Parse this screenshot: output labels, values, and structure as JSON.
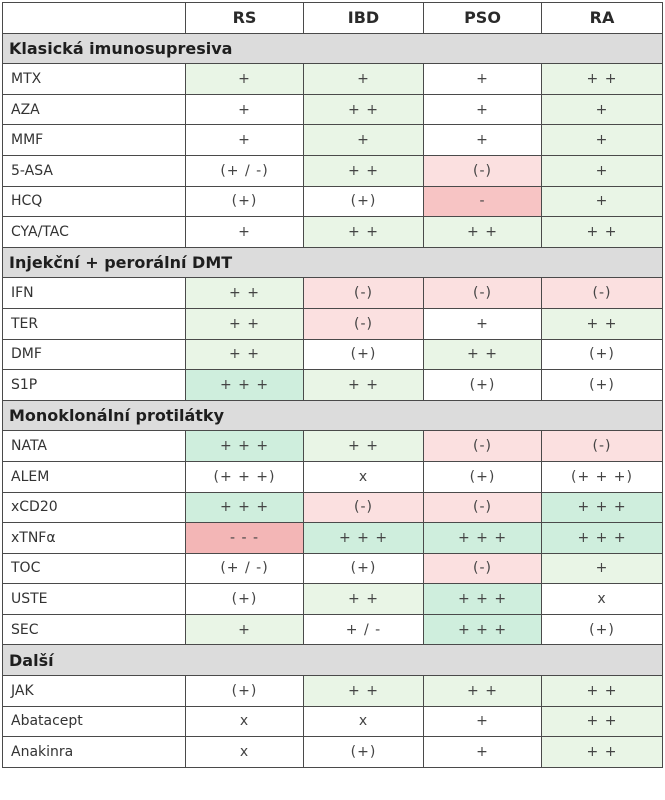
{
  "table": {
    "headers": [
      "RS",
      "IBD",
      "PSO",
      "RA"
    ],
    "sections": [
      {
        "title": "Klasická imunosupresiva",
        "rows": [
          {
            "name": "MTX",
            "values": [
              "+",
              "+",
              "+",
              "+ +"
            ],
            "tones": [
              "g1",
              "g1",
              "w",
              "g1"
            ]
          },
          {
            "name": "AZA",
            "values": [
              "+",
              "+ +",
              "+",
              "+"
            ],
            "tones": [
              "w",
              "g1",
              "w",
              "g1"
            ]
          },
          {
            "name": "MMF",
            "values": [
              "+",
              "+",
              "+",
              "+"
            ],
            "tones": [
              "w",
              "g1",
              "w",
              "g1"
            ]
          },
          {
            "name": "5-ASA",
            "values": [
              "(+ / -)",
              "+ +",
              "(-)",
              "+"
            ],
            "tones": [
              "w",
              "g1",
              "p1",
              "g1"
            ]
          },
          {
            "name": "HCQ",
            "values": [
              "(+)",
              "(+)",
              "-",
              "+"
            ],
            "tones": [
              "w",
              "w",
              "p2",
              "g1"
            ]
          },
          {
            "name": "CYA/TAC",
            "values": [
              "+",
              "+ +",
              "+ +",
              "+ +"
            ],
            "tones": [
              "w",
              "g1",
              "g1",
              "g1"
            ]
          }
        ]
      },
      {
        "title": "Injekční + perorální DMT",
        "rows": [
          {
            "name": "IFN",
            "values": [
              "+ +",
              "(-)",
              "(-)",
              "(-)"
            ],
            "tones": [
              "g1",
              "p1",
              "p1",
              "p1"
            ]
          },
          {
            "name": "TER",
            "values": [
              "+ +",
              "(-)",
              "+",
              "+ +"
            ],
            "tones": [
              "g1",
              "p1",
              "w",
              "g1"
            ]
          },
          {
            "name": "DMF",
            "values": [
              "+ +",
              "(+)",
              "+ +",
              "(+)"
            ],
            "tones": [
              "g1",
              "w",
              "g1",
              "w"
            ]
          },
          {
            "name": "S1P",
            "values": [
              "+ + +",
              "+ +",
              "(+)",
              "(+)"
            ],
            "tones": [
              "g2",
              "g1",
              "w",
              "w"
            ]
          }
        ]
      },
      {
        "title": "Monoklonální protilátky",
        "rows": [
          {
            "name": "NATA",
            "values": [
              "+ + +",
              "+ +",
              "(-)",
              "(-)"
            ],
            "tones": [
              "g2",
              "g1",
              "p1",
              "p1"
            ]
          },
          {
            "name": "ALEM",
            "values": [
              "(+ + +)",
              "x",
              "(+)",
              "(+ + +)"
            ],
            "tones": [
              "w",
              "w",
              "w",
              "w"
            ]
          },
          {
            "name": "xCD20",
            "values": [
              "+ + +",
              "(-)",
              "(-)",
              "+ + +"
            ],
            "tones": [
              "g2",
              "p1",
              "p1",
              "g2"
            ]
          },
          {
            "name": "xTNFα",
            "values": [
              "- - -",
              "+ + +",
              "+ + +",
              "+ + +"
            ],
            "tones": [
              "p3",
              "g2",
              "g2",
              "g2"
            ]
          },
          {
            "name": "TOC",
            "values": [
              "(+ / -)",
              "(+)",
              "(-)",
              "+"
            ],
            "tones": [
              "w",
              "w",
              "p1",
              "g1"
            ]
          },
          {
            "name": "USTE",
            "values": [
              "(+)",
              "+ +",
              "+ + +",
              "x"
            ],
            "tones": [
              "w",
              "g1",
              "g2",
              "w"
            ]
          },
          {
            "name": "SEC",
            "values": [
              "+",
              "+ / -",
              "+ + +",
              "(+)"
            ],
            "tones": [
              "g1",
              "w",
              "g2",
              "w"
            ]
          }
        ]
      },
      {
        "title": "Další",
        "rows": [
          {
            "name": "JAK",
            "values": [
              "(+)",
              "+ +",
              "+ +",
              "+ +"
            ],
            "tones": [
              "w",
              "g1",
              "g1",
              "g1"
            ]
          },
          {
            "name": "Abatacept",
            "values": [
              "x",
              "x",
              "+",
              "+ +"
            ],
            "tones": [
              "w",
              "w",
              "w",
              "g1"
            ]
          },
          {
            "name": "Anakinra",
            "values": [
              "x",
              "(+)",
              "+",
              "+ +"
            ],
            "tones": [
              "w",
              "w",
              "w",
              "g1"
            ]
          }
        ]
      }
    ]
  },
  "colors": {
    "w": "#ffffff",
    "g1": "#e9f5e6",
    "g2": "#cfeedd",
    "p1": "#fbe0e0",
    "p2": "#f7c4c4",
    "p3": "#f3b6b6",
    "section_bg": "#dcdcdc",
    "border": "#4a4a4a"
  }
}
